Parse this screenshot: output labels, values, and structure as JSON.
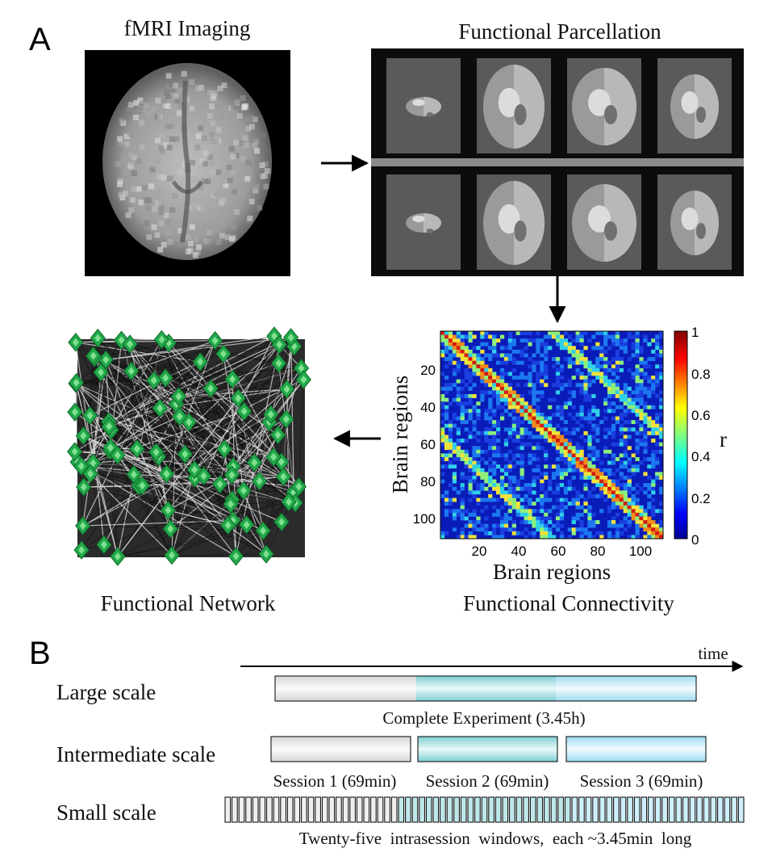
{
  "panel_a": {
    "letter": "A",
    "fmri_title": "fMRI Imaging",
    "parcellation_title": "Functional Parcellation",
    "network_title": "Functional Network",
    "connectivity_title": "Functional Connectivity",
    "matrix": {
      "xlabel": "Brain regions",
      "ylabel": "Brain regions",
      "y_ticks": [
        "20",
        "40",
        "60",
        "80",
        "100"
      ],
      "x_ticks": [
        "20",
        "40",
        "60",
        "80",
        "100"
      ],
      "colorbar_ticks": [
        "1",
        "0.8",
        "0.6",
        "0.4",
        "0.2",
        "0"
      ],
      "colorbar_label": "r"
    }
  },
  "panel_b": {
    "letter": "B",
    "time_label": "time",
    "rows": {
      "large": {
        "label": "Large scale",
        "caption": "Complete Experiment (3.45h)"
      },
      "intermediate": {
        "label": "Intermediate scale",
        "sessions": [
          "Session 1 (69min)",
          "Session 2 (69min)",
          "Session 3 (69min)"
        ]
      },
      "small": {
        "label": "Small scale",
        "caption": "Twenty-five  intrasession  windows,  each ~3.45min  long",
        "window_count": 75
      }
    }
  },
  "colors": {
    "node_green": "#22a84a",
    "session1": "#e8e8e8",
    "session2": "#a9dde0",
    "session3": "#c3e8f6",
    "matrix_low": "#0a1cb8"
  }
}
